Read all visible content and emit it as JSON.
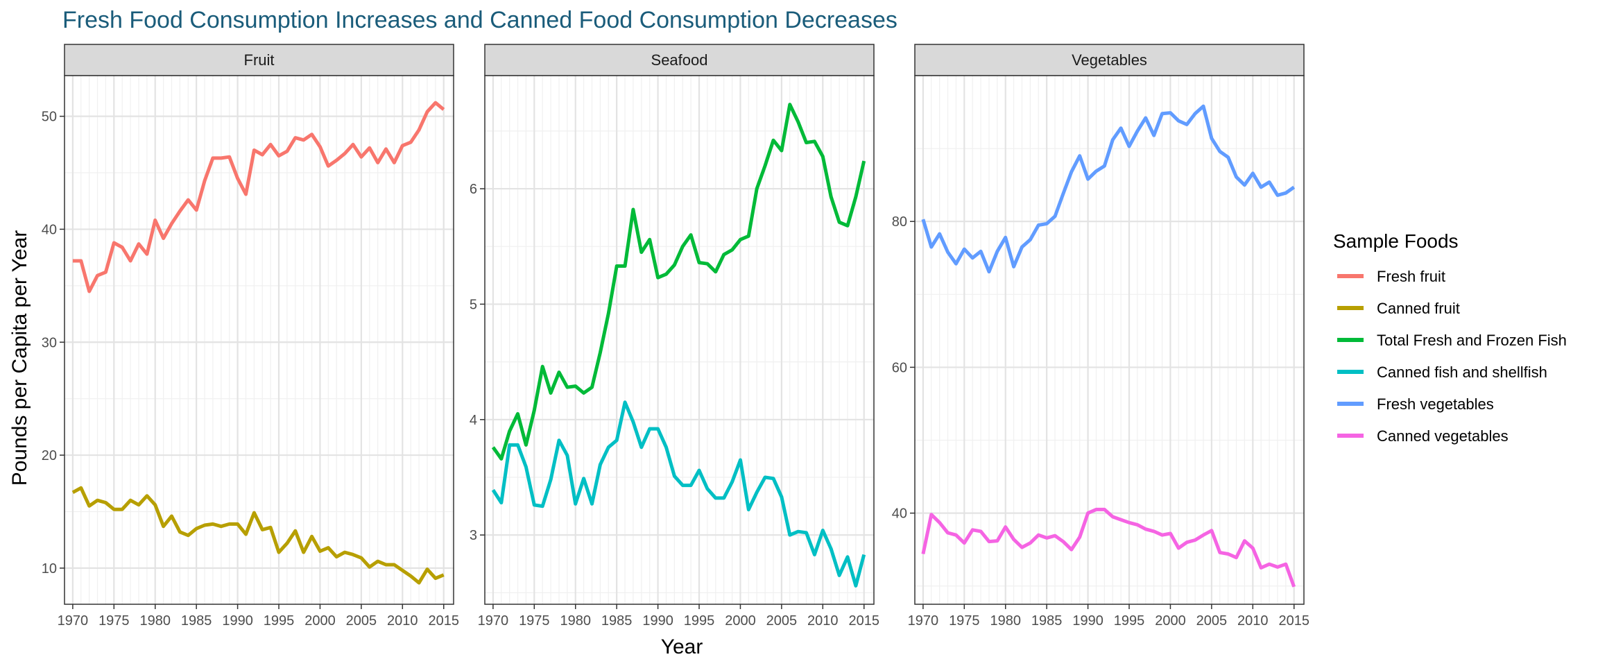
{
  "title": "Fresh Food Consumption Increases and Canned Food Consumption Decreases",
  "xlabel": "Year",
  "ylabel": "Pounds per Capita per Year",
  "legend": {
    "title": "Sample Foods",
    "placement": "right",
    "entries": [
      {
        "name": "Fresh fruit",
        "color": "#F8766D"
      },
      {
        "name": "Canned fruit",
        "color": "#B79F00"
      },
      {
        "name": "Total Fresh and Frozen Fish",
        "color": "#00BA38"
      },
      {
        "name": "Canned fish and shellfish",
        "color": "#00BFC4"
      },
      {
        "name": "Fresh vegetables",
        "color": "#619CFF"
      },
      {
        "name": "Canned vegetables",
        "color": "#F564E3"
      }
    ]
  },
  "chart_data": {
    "type": "line",
    "grid": true,
    "x": [
      1970,
      1971,
      1972,
      1973,
      1974,
      1975,
      1976,
      1977,
      1978,
      1979,
      1980,
      1981,
      1982,
      1983,
      1984,
      1985,
      1986,
      1987,
      1988,
      1989,
      1990,
      1991,
      1992,
      1993,
      1994,
      1995,
      1996,
      1997,
      1998,
      1999,
      2000,
      2001,
      2002,
      2003,
      2004,
      2005,
      2006,
      2007,
      2008,
      2009,
      2010,
      2011,
      2012,
      2013,
      2014,
      2015
    ],
    "xlim": [
      1969,
      2016.2
    ],
    "xticks": [
      "1970",
      "1975",
      "1980",
      "1985",
      "1990",
      "1995",
      "2000",
      "2005",
      "2010",
      "2015"
    ],
    "facets": [
      {
        "name": "Fruit",
        "ylim": [
          6.8,
          53.6
        ],
        "yticks": [
          "10",
          "20",
          "30",
          "40",
          "50"
        ],
        "series": [
          {
            "name": "Fresh fruit",
            "color": "#F8766D",
            "values": [
              37.2,
              37.2,
              34.5,
              35.9,
              36.2,
              38.8,
              38.4,
              37.2,
              38.7,
              37.8,
              40.8,
              39.2,
              40.5,
              41.6,
              42.6,
              41.7,
              44.3,
              46.3,
              46.3,
              46.4,
              44.5,
              43.1,
              47.0,
              46.6,
              47.5,
              46.5,
              46.9,
              48.1,
              47.9,
              48.4,
              47.3,
              45.6,
              46.1,
              46.7,
              47.5,
              46.4,
              47.2,
              45.9,
              47.1,
              45.9,
              47.4,
              47.7,
              48.8,
              50.4,
              51.2,
              50.6
            ]
          },
          {
            "name": "Canned fruit",
            "color": "#B79F00",
            "values": [
              16.7,
              17.1,
              15.5,
              16.0,
              15.8,
              15.2,
              15.2,
              16.0,
              15.6,
              16.4,
              15.6,
              13.7,
              14.6,
              13.2,
              12.9,
              13.5,
              13.8,
              13.9,
              13.7,
              13.9,
              13.9,
              13.0,
              14.9,
              13.4,
              13.6,
              11.4,
              12.2,
              13.3,
              11.4,
              12.8,
              11.5,
              11.8,
              11.0,
              11.4,
              11.2,
              10.9,
              10.1,
              10.6,
              10.3,
              10.3,
              9.8,
              9.3,
              8.7,
              9.9,
              9.1,
              9.4
            ]
          }
        ]
      },
      {
        "name": "Seafood",
        "ylim": [
          2.4,
          6.98
        ],
        "yticks": [
          "3",
          "4",
          "5",
          "6"
        ],
        "series": [
          {
            "name": "Total Fresh and Frozen Fish",
            "color": "#00BA38",
            "values": [
              3.76,
              3.66,
              3.9,
              4.05,
              3.78,
              4.08,
              4.46,
              4.23,
              4.41,
              4.28,
              4.29,
              4.23,
              4.28,
              4.58,
              4.92,
              5.33,
              5.33,
              5.82,
              5.45,
              5.56,
              5.23,
              5.26,
              5.34,
              5.5,
              5.6,
              5.36,
              5.35,
              5.28,
              5.43,
              5.47,
              5.56,
              5.59,
              6.0,
              6.2,
              6.42,
              6.33,
              6.73,
              6.58,
              6.4,
              6.41,
              6.28,
              5.93,
              5.71,
              5.68,
              5.93,
              6.24
            ]
          },
          {
            "name": "Canned fish and shellfish",
            "color": "#00BFC4",
            "values": [
              3.39,
              3.28,
              3.78,
              3.78,
              3.59,
              3.26,
              3.25,
              3.48,
              3.82,
              3.69,
              3.27,
              3.49,
              3.27,
              3.61,
              3.76,
              3.82,
              4.15,
              3.98,
              3.76,
              3.92,
              3.92,
              3.76,
              3.51,
              3.43,
              3.43,
              3.56,
              3.4,
              3.32,
              3.32,
              3.46,
              3.65,
              3.22,
              3.37,
              3.5,
              3.49,
              3.33,
              3.0,
              3.03,
              3.02,
              2.83,
              3.04,
              2.88,
              2.65,
              2.81,
              2.56,
              2.83
            ]
          }
        ]
      },
      {
        "name": "Vegetables",
        "ylim": [
          27.5,
          100.0
        ],
        "yticks": [
          "40",
          "60",
          "80"
        ],
        "series": [
          {
            "name": "Fresh vegetables",
            "color": "#619CFF",
            "values": [
              80.3,
              76.5,
              78.3,
              75.8,
              74.2,
              76.2,
              75.0,
              75.9,
              73.1,
              75.9,
              77.8,
              73.8,
              76.5,
              77.5,
              79.5,
              79.7,
              80.7,
              83.8,
              86.8,
              89.0,
              85.8,
              86.9,
              87.6,
              91.2,
              92.8,
              90.3,
              92.4,
              94.2,
              91.8,
              94.8,
              94.9,
              93.8,
              93.3,
              94.8,
              95.8,
              91.4,
              89.6,
              88.8,
              86.1,
              85.0,
              86.6,
              84.7,
              85.4,
              83.6,
              83.9,
              84.7
            ]
          },
          {
            "name": "Canned vegetables",
            "color": "#F564E3",
            "values": [
              34.4,
              39.8,
              38.7,
              37.3,
              37.0,
              35.9,
              37.7,
              37.5,
              36.1,
              36.2,
              38.1,
              36.4,
              35.3,
              35.9,
              37.0,
              36.6,
              36.9,
              36.1,
              35.0,
              36.7,
              40.0,
              40.5,
              40.5,
              39.5,
              39.1,
              38.7,
              38.4,
              37.8,
              37.5,
              37.0,
              37.2,
              35.2,
              36.0,
              36.3,
              37.0,
              37.6,
              34.6,
              34.4,
              33.9,
              36.2,
              35.2,
              32.5,
              33.0,
              32.6,
              33.0,
              29.9
            ]
          }
        ]
      }
    ]
  }
}
